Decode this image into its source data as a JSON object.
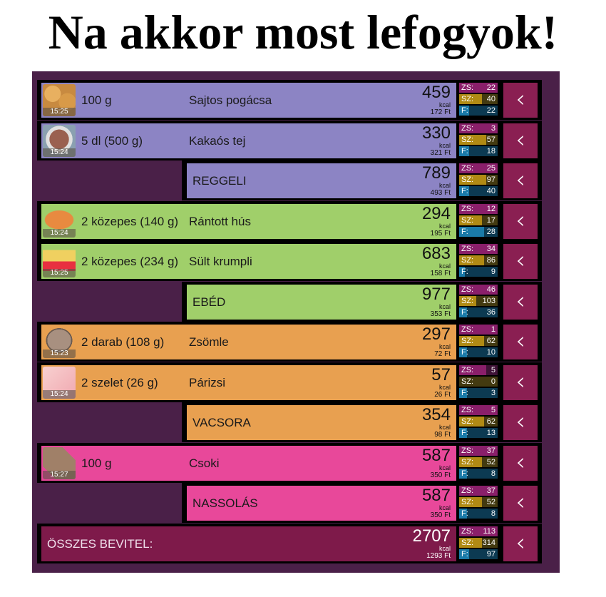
{
  "title": "Na akkor most lefogyok!",
  "colors": {
    "panel": "#4a2048",
    "reggeli": "#8c84c4",
    "ebed": "#a0cf6a",
    "vacsora": "#e8a050",
    "nassolas": "#e8489a",
    "total": "#7e1a4a",
    "button": "#8a1f52",
    "zs_fill": "#8a1f6a",
    "zs_bg": "#3e1236",
    "sz_fill": "#b08a14",
    "sz_bg": "#433a10",
    "f_fill": "#1a7aa8",
    "f_bg": "#0c3a52"
  },
  "labels": {
    "zs": "ZS:",
    "sz": "SZ:",
    "f": "F:",
    "kcal_unit": "kcal",
    "back_icon": "‹"
  },
  "rows": [
    {
      "type": "item",
      "group": "reggeli",
      "icon": "pogacsa-photo",
      "time": "15:25",
      "qty": "100 g",
      "name": "Sajtos pogácsa",
      "kcal": "459",
      "price": "172 Ft",
      "zs": "22",
      "sz": "40",
      "f": "22",
      "zs_pct": 100,
      "sz_pct": 60,
      "f_pct": 25
    },
    {
      "type": "item",
      "group": "reggeli",
      "icon": "cocoa-milk-photo",
      "time": "15:24",
      "qty": "5 dl (500 g)",
      "name": "Kakaós tej",
      "kcal": "330",
      "price": "321 Ft",
      "zs": "3",
      "sz": "57",
      "f": "18",
      "zs_pct": 100,
      "sz_pct": 70,
      "f_pct": 25
    },
    {
      "type": "sum",
      "group": "reggeli",
      "name": "REGGELI",
      "kcal": "789",
      "price": "493 Ft",
      "zs": "25",
      "sz": "97",
      "f": "40",
      "zs_pct": 100,
      "sz_pct": 70,
      "f_pct": 25
    },
    {
      "type": "item",
      "group": "ebed",
      "icon": "schnitzel-icon",
      "time": "15:24",
      "qty": "2 közepes (140 g)",
      "name": "Rántott hús",
      "kcal": "294",
      "price": "195 Ft",
      "zs": "12",
      "sz": "17",
      "f": "28",
      "zs_pct": 100,
      "sz_pct": 60,
      "f_pct": 65
    },
    {
      "type": "item",
      "group": "ebed",
      "icon": "fries-icon",
      "time": "15:25",
      "qty": "2 közepes (234 g)",
      "name": "Sült krumpli",
      "kcal": "683",
      "price": "158 Ft",
      "zs": "34",
      "sz": "86",
      "f": "9",
      "zs_pct": 100,
      "sz_pct": 65,
      "f_pct": 15
    },
    {
      "type": "sum",
      "group": "ebed",
      "name": "EBÉD",
      "kcal": "977",
      "price": "353 Ft",
      "zs": "46",
      "sz": "103",
      "f": "36",
      "zs_pct": 100,
      "sz_pct": 45,
      "f_pct": 20
    },
    {
      "type": "item",
      "group": "vacsora",
      "icon": "bread-roll-icon",
      "time": "15:23",
      "qty": "2 darab (108 g)",
      "name": "Zsömle",
      "kcal": "297",
      "price": "72 Ft",
      "zs": "1",
      "sz": "62",
      "f": "10",
      "zs_pct": 100,
      "sz_pct": 65,
      "f_pct": 20
    },
    {
      "type": "item",
      "group": "vacsora",
      "icon": "parizer-photo",
      "time": "15:24",
      "qty": "2 szelet (26 g)",
      "name": "Párizsi",
      "kcal": "57",
      "price": "26 Ft",
      "zs": "5",
      "sz": "0",
      "f": "3",
      "zs_pct": 70,
      "sz_pct": 0,
      "f_pct": 20
    },
    {
      "type": "sum",
      "group": "vacsora",
      "name": "VACSORA",
      "kcal": "354",
      "price": "98 Ft",
      "zs": "5",
      "sz": "62",
      "f": "13",
      "zs_pct": 100,
      "sz_pct": 65,
      "f_pct": 20
    },
    {
      "type": "item",
      "group": "nassolas",
      "icon": "chocolate-icon",
      "time": "15:27",
      "qty": "100 g",
      "name": "Csoki",
      "kcal": "587",
      "price": "350 Ft",
      "zs": "37",
      "sz": "52",
      "f": "8",
      "zs_pct": 100,
      "sz_pct": 60,
      "f_pct": 20
    },
    {
      "type": "sum",
      "group": "nassolas",
      "name": "NASSOLÁS",
      "kcal": "587",
      "price": "350 Ft",
      "zs": "37",
      "sz": "52",
      "f": "8",
      "zs_pct": 100,
      "sz_pct": 60,
      "f_pct": 20
    },
    {
      "type": "total",
      "group": "total",
      "name": "ÖSSZES BEVITEL:",
      "kcal": "2707",
      "price": "1293 Ft",
      "zs": "113",
      "sz": "314",
      "f": "97",
      "zs_pct": 100,
      "sz_pct": 60,
      "f_pct": 25
    }
  ]
}
